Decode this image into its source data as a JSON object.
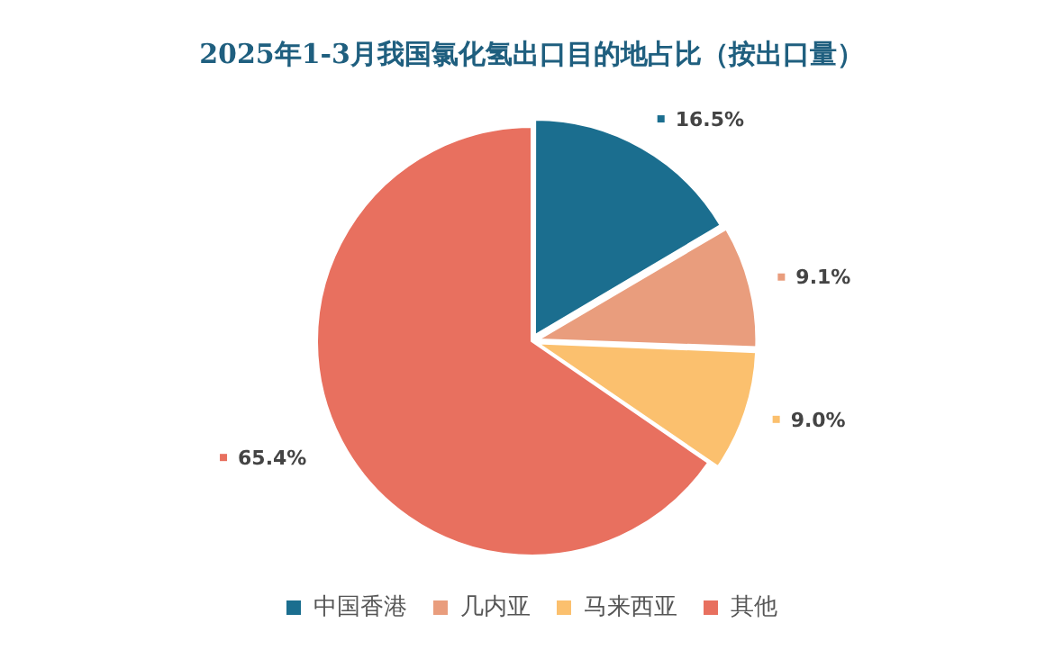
{
  "chart_data": {
    "type": "pie",
    "title": "2025年1-3月我国氯化氢出口目的地占比（按出口量）",
    "categories": [
      "中国香港",
      "几内亚",
      "马来西亚",
      "其他"
    ],
    "values": [
      16.5,
      9.1,
      9.0,
      65.4
    ],
    "colors": [
      "#1b6e8f",
      "#e99d7d",
      "#fbc06e",
      "#e8705f"
    ],
    "value_labels": [
      "16.5%",
      "9.1%",
      "9.0%",
      "65.4%"
    ],
    "legend": "bottom"
  }
}
